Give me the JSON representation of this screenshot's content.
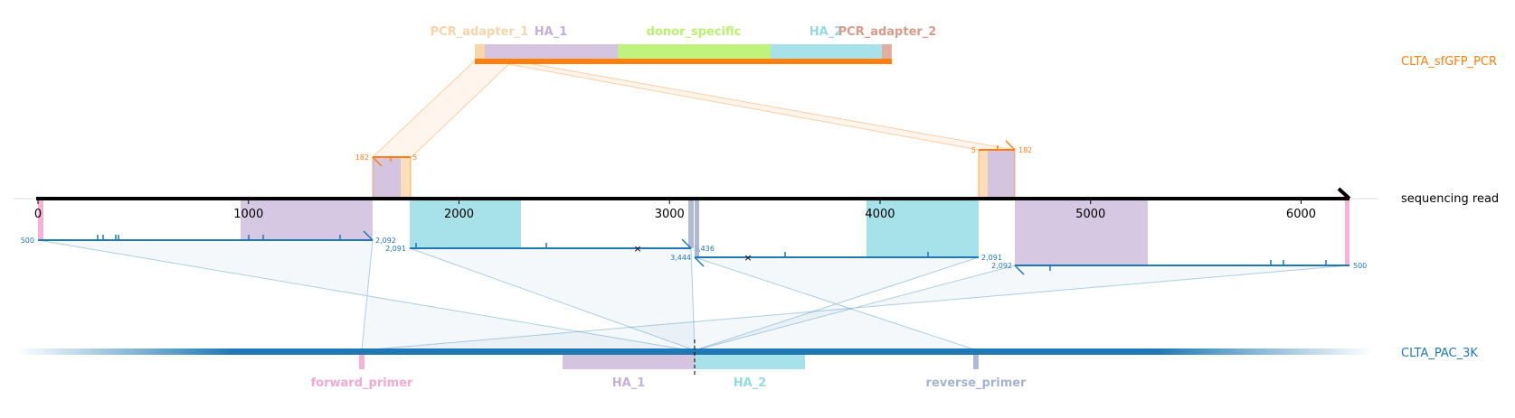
{
  "colors": {
    "pcr": "#ff7f0e",
    "read_blue": "#1f77b4",
    "ha1": "#c5b0d5",
    "ha2": "#9edae5",
    "donor": "#b5f572",
    "adapter1": "#ffd4a6",
    "adapter2": "#d6a58e",
    "fwd_primer": "#f7b6d2",
    "rev_primer": "#a8b5d6",
    "axis": "#000000"
  },
  "labels": {
    "pcr_name": "CLTA_sfGFP_PCR",
    "read_name": "sequencing read",
    "ref_name": "CLTA_PAC_3K"
  },
  "pcr_features": [
    {
      "key": "adapter1",
      "label": "PCR_adapter_1",
      "color": "#fad5a8"
    },
    {
      "key": "ha1",
      "label": "HA_1",
      "color": "#c5b0d5"
    },
    {
      "key": "donor",
      "label": "donor_specific",
      "color": "#b9f26f"
    },
    {
      "key": "ha2",
      "label": "HA_2",
      "color": "#91dbe6"
    },
    {
      "key": "adapter2",
      "label": "PCR_adapter_2",
      "color": "#d99a88"
    }
  ],
  "ref_features": [
    {
      "key": "fwd",
      "label": "forward_primer",
      "color": "#f7a8cf"
    },
    {
      "key": "ha1",
      "label": "HA_1",
      "color": "#c5b0d5"
    },
    {
      "key": "ha2",
      "label": "HA_2",
      "color": "#91dbe6"
    },
    {
      "key": "rev",
      "label": "reverse_primer",
      "color": "#a5b3d4"
    }
  ],
  "read_axis": {
    "ticks": [
      0,
      1000,
      2000,
      3000,
      4000,
      5000,
      6000
    ],
    "tick_labels": [
      "0",
      "1000",
      "2000",
      "3000",
      "4000",
      "5000",
      "6000"
    ],
    "length": 6230
  },
  "alignment_labels": {
    "pcr_left_start": "182",
    "pcr_left_end": "5",
    "pcr_right_start": "5",
    "pcr_right_end": "182",
    "a1_start": "500",
    "a1_end": "2,092",
    "a2_start": "2,091",
    "a2_end": "3,436",
    "a3_start": "3,444",
    "a3_end": "2,091",
    "a4_start": "2,092",
    "a4_end": "500"
  }
}
